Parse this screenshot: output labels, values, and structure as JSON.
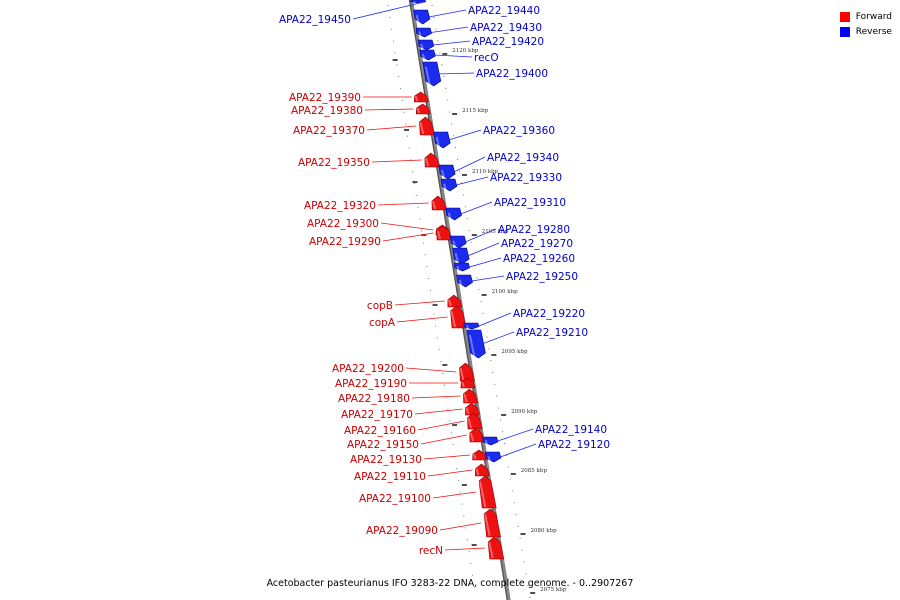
{
  "caption": "Acetobacter pasteurianus IFO 3283-22 DNA, complete genome. - 0..2907267",
  "legend": [
    {
      "label": "Forward",
      "color": "#ff0000"
    },
    {
      "label": "Reverse",
      "color": "#0000ff"
    }
  ],
  "colors": {
    "forward": "#ee1111",
    "reverse": "#1a2bee",
    "backbone": "#888888"
  },
  "ticks": [
    "2120 kbp",
    "2115 kbp",
    "2110 kbp",
    "2105 kbp",
    "2100 kbp",
    "2095 kbp",
    "2090 kbp",
    "2085 kbp",
    "2080 kbp",
    "2075 kbp"
  ],
  "genes": [
    {
      "name": "APA22_19450",
      "strand": "reverse"
    },
    {
      "name": "APA22_19440",
      "strand": "reverse"
    },
    {
      "name": "APA22_19430",
      "strand": "reverse"
    },
    {
      "name": "APA22_19420",
      "strand": "reverse"
    },
    {
      "name": "recO",
      "strand": "reverse"
    },
    {
      "name": "APA22_19400",
      "strand": "reverse"
    },
    {
      "name": "APA22_19390",
      "strand": "forward"
    },
    {
      "name": "APA22_19380",
      "strand": "forward"
    },
    {
      "name": "APA22_19370",
      "strand": "forward"
    },
    {
      "name": "APA22_19360",
      "strand": "reverse"
    },
    {
      "name": "APA22_19350",
      "strand": "forward"
    },
    {
      "name": "APA22_19340",
      "strand": "reverse"
    },
    {
      "name": "APA22_19330",
      "strand": "reverse"
    },
    {
      "name": "APA22_19320",
      "strand": "forward"
    },
    {
      "name": "APA22_19310",
      "strand": "reverse"
    },
    {
      "name": "APA22_19300",
      "strand": "forward"
    },
    {
      "name": "APA22_19290",
      "strand": "forward"
    },
    {
      "name": "APA22_19280",
      "strand": "reverse"
    },
    {
      "name": "APA22_19270",
      "strand": "reverse"
    },
    {
      "name": "APA22_19260",
      "strand": "reverse"
    },
    {
      "name": "APA22_19250",
      "strand": "reverse"
    },
    {
      "name": "copB",
      "strand": "forward"
    },
    {
      "name": "copA",
      "strand": "forward"
    },
    {
      "name": "APA22_19220",
      "strand": "reverse"
    },
    {
      "name": "APA22_19210",
      "strand": "reverse"
    },
    {
      "name": "APA22_19200",
      "strand": "forward"
    },
    {
      "name": "APA22_19190",
      "strand": "forward"
    },
    {
      "name": "APA22_19180",
      "strand": "forward"
    },
    {
      "name": "APA22_19170",
      "strand": "forward"
    },
    {
      "name": "APA22_19160",
      "strand": "forward"
    },
    {
      "name": "APA22_19150",
      "strand": "forward"
    },
    {
      "name": "APA22_19140",
      "strand": "reverse"
    },
    {
      "name": "APA22_19130",
      "strand": "forward"
    },
    {
      "name": "APA22_19120",
      "strand": "reverse"
    },
    {
      "name": "APA22_19110",
      "strand": "forward"
    },
    {
      "name": "APA22_19100",
      "strand": "forward"
    },
    {
      "name": "APA22_19090",
      "strand": "forward"
    },
    {
      "name": "recN",
      "strand": "forward"
    }
  ]
}
